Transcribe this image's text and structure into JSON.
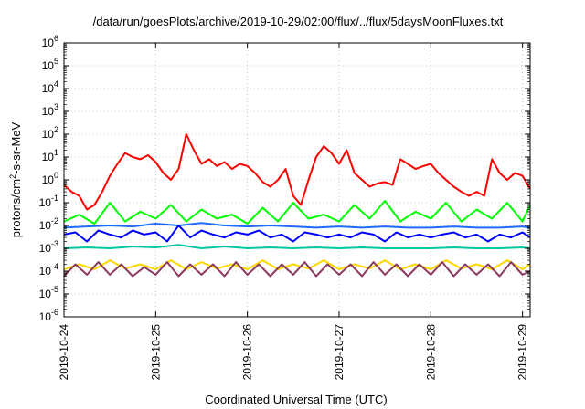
{
  "chart_data": {
    "type": "line",
    "title": "/data/run/goesPlots/archive/2019-10-29/02:00/flux/../flux/5daysMoonFluxes.txt",
    "xlabel": "Coordinated Universal Time (UTC)",
    "ylabel": "protons/cm²-s-sr-MeV",
    "y_scale": "log",
    "ylim": [
      1e-06,
      1000000.0
    ],
    "y_tick_labels": [
      {
        "base": "10",
        "exp": "-6"
      },
      {
        "base": "10",
        "exp": "-5"
      },
      {
        "base": "10",
        "exp": "-4"
      },
      {
        "base": "10",
        "exp": "-3"
      },
      {
        "base": "10",
        "exp": "-2"
      },
      {
        "base": "10",
        "exp": "-1"
      },
      {
        "base": "10",
        "exp": "0"
      },
      {
        "base": "10",
        "exp": "1"
      },
      {
        "base": "10",
        "exp": "2"
      },
      {
        "base": "10",
        "exp": "3"
      },
      {
        "base": "10",
        "exp": "4"
      },
      {
        "base": "10",
        "exp": "5"
      },
      {
        "base": "10",
        "exp": "6"
      }
    ],
    "xlim": [
      "2019-10-24T00:00",
      "2019-10-29T02:00"
    ],
    "x_tick_labels": [
      "2019-10-24",
      "2019-10-25",
      "2019-10-26",
      "2019-10-27",
      "2019-10-28",
      "2019-10-29"
    ],
    "grid": true,
    "series": [
      {
        "color": "#ff0000",
        "x": [
          "2019-10-24T00:00",
          "2019-10-24T02:00",
          "2019-10-24T04:00",
          "2019-10-24T06:00",
          "2019-10-24T08:00",
          "2019-10-24T10:00",
          "2019-10-24T12:00",
          "2019-10-24T14:00",
          "2019-10-24T16:00",
          "2019-10-24T18:00",
          "2019-10-24T20:00",
          "2019-10-24T22:00",
          "2019-10-25T00:00",
          "2019-10-25T02:00",
          "2019-10-25T04:00",
          "2019-10-25T06:00",
          "2019-10-25T08:00",
          "2019-10-25T10:00",
          "2019-10-25T12:00",
          "2019-10-25T14:00",
          "2019-10-25T16:00",
          "2019-10-25T18:00",
          "2019-10-25T20:00",
          "2019-10-25T22:00",
          "2019-10-26T00:00",
          "2019-10-26T02:00",
          "2019-10-26T04:00",
          "2019-10-26T06:00",
          "2019-10-26T08:00",
          "2019-10-26T10:00",
          "2019-10-26T12:00",
          "2019-10-26T14:00",
          "2019-10-26T16:00",
          "2019-10-26T18:00",
          "2019-10-26T20:00",
          "2019-10-26T22:00",
          "2019-10-27T00:00",
          "2019-10-27T02:00",
          "2019-10-27T04:00",
          "2019-10-27T06:00",
          "2019-10-27T08:00",
          "2019-10-27T10:00",
          "2019-10-27T12:00",
          "2019-10-27T14:00",
          "2019-10-27T16:00",
          "2019-10-27T18:00",
          "2019-10-27T20:00",
          "2019-10-27T22:00",
          "2019-10-28T00:00",
          "2019-10-28T02:00",
          "2019-10-28T04:00",
          "2019-10-28T06:00",
          "2019-10-28T08:00",
          "2019-10-28T10:00",
          "2019-10-28T12:00",
          "2019-10-28T14:00",
          "2019-10-28T16:00",
          "2019-10-28T18:00",
          "2019-10-28T20:00",
          "2019-10-28T22:00",
          "2019-10-29T00:00",
          "2019-10-29T02:00"
        ],
        "y": [
          0.6,
          0.3,
          0.2,
          0.05,
          0.08,
          0.3,
          1.5,
          5,
          15,
          10,
          8,
          12,
          6,
          2,
          1,
          3,
          100,
          20,
          5,
          8,
          4,
          6,
          3,
          5,
          4,
          2,
          0.8,
          0.5,
          1,
          3,
          0.2,
          0.08,
          1,
          10,
          30,
          15,
          5,
          20,
          2,
          1,
          0.5,
          0.7,
          0.8,
          0.6,
          8,
          5,
          3,
          4,
          5,
          2,
          1,
          0.5,
          0.3,
          0.2,
          0.3,
          0.2,
          8,
          2,
          1,
          2,
          1.5,
          0.4
        ]
      },
      {
        "color": "#00ff00",
        "x": [
          "2019-10-24T00:00",
          "2019-10-24T04:00",
          "2019-10-24T08:00",
          "2019-10-24T12:00",
          "2019-10-24T16:00",
          "2019-10-24T20:00",
          "2019-10-25T00:00",
          "2019-10-25T04:00",
          "2019-10-25T08:00",
          "2019-10-25T12:00",
          "2019-10-25T16:00",
          "2019-10-25T20:00",
          "2019-10-26T00:00",
          "2019-10-26T04:00",
          "2019-10-26T08:00",
          "2019-10-26T12:00",
          "2019-10-26T16:00",
          "2019-10-26T20:00",
          "2019-10-27T00:00",
          "2019-10-27T04:00",
          "2019-10-27T08:00",
          "2019-10-27T12:00",
          "2019-10-27T16:00",
          "2019-10-27T20:00",
          "2019-10-28T00:00",
          "2019-10-28T04:00",
          "2019-10-28T08:00",
          "2019-10-28T12:00",
          "2019-10-28T16:00",
          "2019-10-28T20:00",
          "2019-10-29T00:00",
          "2019-10-29T02:00"
        ],
        "y": [
          0.015,
          0.03,
          0.012,
          0.1,
          0.015,
          0.04,
          0.02,
          0.08,
          0.015,
          0.05,
          0.02,
          0.03,
          0.012,
          0.06,
          0.015,
          0.1,
          0.02,
          0.03,
          0.015,
          0.08,
          0.02,
          0.12,
          0.015,
          0.04,
          0.02,
          0.1,
          0.015,
          0.05,
          0.02,
          0.1,
          0.015,
          0.08
        ]
      },
      {
        "color": "#1e6bff",
        "x": [
          "2019-10-24T00:00",
          "2019-10-24T06:00",
          "2019-10-24T12:00",
          "2019-10-24T18:00",
          "2019-10-25T00:00",
          "2019-10-25T06:00",
          "2019-10-25T12:00",
          "2019-10-25T18:00",
          "2019-10-26T00:00",
          "2019-10-26T06:00",
          "2019-10-26T12:00",
          "2019-10-26T18:00",
          "2019-10-27T00:00",
          "2019-10-27T06:00",
          "2019-10-27T12:00",
          "2019-10-27T18:00",
          "2019-10-28T00:00",
          "2019-10-28T06:00",
          "2019-10-28T12:00",
          "2019-10-28T18:00",
          "2019-10-29T00:00",
          "2019-10-29T02:00"
        ],
        "y": [
          0.008,
          0.009,
          0.01,
          0.009,
          0.012,
          0.01,
          0.013,
          0.01,
          0.009,
          0.01,
          0.009,
          0.008,
          0.009,
          0.008,
          0.009,
          0.008,
          0.008,
          0.009,
          0.008,
          0.008,
          0.009,
          0.008
        ]
      },
      {
        "color": "#0000ff",
        "x": [
          "2019-10-24T00:00",
          "2019-10-24T03:00",
          "2019-10-24T06:00",
          "2019-10-24T09:00",
          "2019-10-24T12:00",
          "2019-10-24T15:00",
          "2019-10-24T18:00",
          "2019-10-24T21:00",
          "2019-10-25T00:00",
          "2019-10-25T03:00",
          "2019-10-25T06:00",
          "2019-10-25T09:00",
          "2019-10-25T12:00",
          "2019-10-25T15:00",
          "2019-10-25T18:00",
          "2019-10-25T21:00",
          "2019-10-26T00:00",
          "2019-10-26T03:00",
          "2019-10-26T06:00",
          "2019-10-26T09:00",
          "2019-10-26T12:00",
          "2019-10-26T15:00",
          "2019-10-26T18:00",
          "2019-10-26T21:00",
          "2019-10-27T00:00",
          "2019-10-27T03:00",
          "2019-10-27T06:00",
          "2019-10-27T09:00",
          "2019-10-27T12:00",
          "2019-10-27T15:00",
          "2019-10-27T18:00",
          "2019-10-27T21:00",
          "2019-10-28T00:00",
          "2019-10-28T03:00",
          "2019-10-28T06:00",
          "2019-10-28T09:00",
          "2019-10-28T12:00",
          "2019-10-28T15:00",
          "2019-10-28T18:00",
          "2019-10-28T21:00",
          "2019-10-29T00:00",
          "2019-10-29T02:00"
        ],
        "y": [
          0.004,
          0.005,
          0.002,
          0.006,
          0.004,
          0.003,
          0.006,
          0.004,
          0.005,
          0.002,
          0.01,
          0.003,
          0.006,
          0.004,
          0.003,
          0.005,
          0.004,
          0.006,
          0.003,
          0.004,
          0.002,
          0.005,
          0.004,
          0.003,
          0.004,
          0.003,
          0.005,
          0.004,
          0.002,
          0.005,
          0.003,
          0.004,
          0.003,
          0.004,
          0.005,
          0.003,
          0.004,
          0.002,
          0.004,
          0.003,
          0.005,
          0.003
        ]
      },
      {
        "color": "#00c8a0",
        "x": [
          "2019-10-24T00:00",
          "2019-10-24T06:00",
          "2019-10-24T12:00",
          "2019-10-24T18:00",
          "2019-10-25T00:00",
          "2019-10-25T06:00",
          "2019-10-25T12:00",
          "2019-10-25T18:00",
          "2019-10-26T00:00",
          "2019-10-26T06:00",
          "2019-10-26T12:00",
          "2019-10-26T18:00",
          "2019-10-27T00:00",
          "2019-10-27T06:00",
          "2019-10-27T12:00",
          "2019-10-27T18:00",
          "2019-10-28T00:00",
          "2019-10-28T06:00",
          "2019-10-28T12:00",
          "2019-10-28T18:00",
          "2019-10-29T00:00",
          "2019-10-29T02:00"
        ],
        "y": [
          0.001,
          0.0011,
          0.001,
          0.0012,
          0.0011,
          0.0014,
          0.001,
          0.0012,
          0.001,
          0.0011,
          0.001,
          0.0011,
          0.001,
          0.0011,
          0.001,
          0.001,
          0.001,
          0.0011,
          0.001,
          0.001,
          0.0011,
          0.001
        ]
      },
      {
        "color": "#ffd700",
        "x": [
          "2019-10-24T00:00",
          "2019-10-24T04:00",
          "2019-10-24T08:00",
          "2019-10-24T12:00",
          "2019-10-24T16:00",
          "2019-10-24T20:00",
          "2019-10-25T00:00",
          "2019-10-25T04:00",
          "2019-10-25T08:00",
          "2019-10-25T12:00",
          "2019-10-25T16:00",
          "2019-10-25T20:00",
          "2019-10-26T00:00",
          "2019-10-26T04:00",
          "2019-10-26T08:00",
          "2019-10-26T12:00",
          "2019-10-26T16:00",
          "2019-10-26T20:00",
          "2019-10-27T00:00",
          "2019-10-27T04:00",
          "2019-10-27T08:00",
          "2019-10-27T12:00",
          "2019-10-27T16:00",
          "2019-10-27T20:00",
          "2019-10-28T00:00",
          "2019-10-28T04:00",
          "2019-10-28T08:00",
          "2019-10-28T12:00",
          "2019-10-28T16:00",
          "2019-10-28T20:00",
          "2019-10-29T00:00",
          "2019-10-29T02:00"
        ],
        "y": [
          0.00012,
          0.0002,
          0.00012,
          0.0003,
          0.00013,
          0.0002,
          0.00012,
          0.0003,
          0.00012,
          0.00025,
          0.00013,
          0.0002,
          0.00012,
          0.0003,
          0.00012,
          0.0002,
          0.00013,
          0.0003,
          0.00012,
          0.0002,
          0.00013,
          0.0003,
          0.00012,
          0.0002,
          0.00012,
          0.0003,
          0.00013,
          0.0002,
          0.00012,
          0.0003,
          0.00012,
          0.0002
        ]
      },
      {
        "color": "#8b3a62",
        "x": [
          "2019-10-24T00:00",
          "2019-10-24T03:00",
          "2019-10-24T06:00",
          "2019-10-24T09:00",
          "2019-10-24T12:00",
          "2019-10-24T15:00",
          "2019-10-24T18:00",
          "2019-10-24T21:00",
          "2019-10-25T00:00",
          "2019-10-25T03:00",
          "2019-10-25T06:00",
          "2019-10-25T09:00",
          "2019-10-25T12:00",
          "2019-10-25T15:00",
          "2019-10-25T18:00",
          "2019-10-25T21:00",
          "2019-10-26T00:00",
          "2019-10-26T03:00",
          "2019-10-26T06:00",
          "2019-10-26T09:00",
          "2019-10-26T12:00",
          "2019-10-26T15:00",
          "2019-10-26T18:00",
          "2019-10-26T21:00",
          "2019-10-27T00:00",
          "2019-10-27T03:00",
          "2019-10-27T06:00",
          "2019-10-27T09:00",
          "2019-10-27T12:00",
          "2019-10-27T15:00",
          "2019-10-27T18:00",
          "2019-10-27T21:00",
          "2019-10-28T00:00",
          "2019-10-28T03:00",
          "2019-10-28T06:00",
          "2019-10-28T09:00",
          "2019-10-28T12:00",
          "2019-10-28T15:00",
          "2019-10-28T18:00",
          "2019-10-28T21:00",
          "2019-10-29T00:00",
          "2019-10-29T02:00"
        ],
        "y": [
          6e-05,
          0.0002,
          7e-05,
          0.00025,
          7e-05,
          0.0002,
          6e-05,
          0.00015,
          7e-05,
          0.00025,
          6e-05,
          0.0002,
          7e-05,
          0.0002,
          6e-05,
          0.00025,
          7e-05,
          0.0002,
          6e-05,
          0.0002,
          7e-05,
          0.00025,
          6e-05,
          0.0002,
          7e-05,
          0.0002,
          6e-05,
          0.00025,
          7e-05,
          0.0002,
          6e-05,
          0.0002,
          7e-05,
          0.00025,
          6e-05,
          0.0002,
          7e-05,
          0.0002,
          6e-05,
          0.00025,
          7e-05,
          0.0001
        ]
      }
    ]
  }
}
